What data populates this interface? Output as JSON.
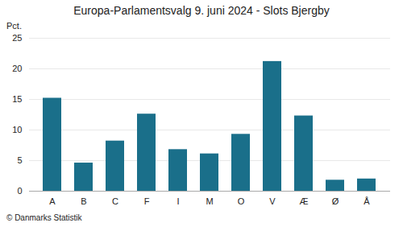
{
  "chart_data": {
    "type": "bar",
    "title": "Europa-Parlamentsvalg 9. juni 2024 - Slots Bjergby",
    "categories": [
      "A",
      "B",
      "C",
      "F",
      "I",
      "M",
      "O",
      "V",
      "Æ",
      "Ø",
      "Å"
    ],
    "values": [
      15.2,
      4.6,
      8.2,
      12.6,
      6.8,
      6.1,
      9.3,
      21.2,
      12.3,
      1.8,
      2.0
    ],
    "color": "#1a6f8a",
    "ylabel": "Pct.",
    "ylim": [
      0,
      25
    ],
    "yticks": [
      0,
      5,
      10,
      15,
      20,
      25
    ],
    "grid": true,
    "footer": "© Danmarks Statistik"
  }
}
